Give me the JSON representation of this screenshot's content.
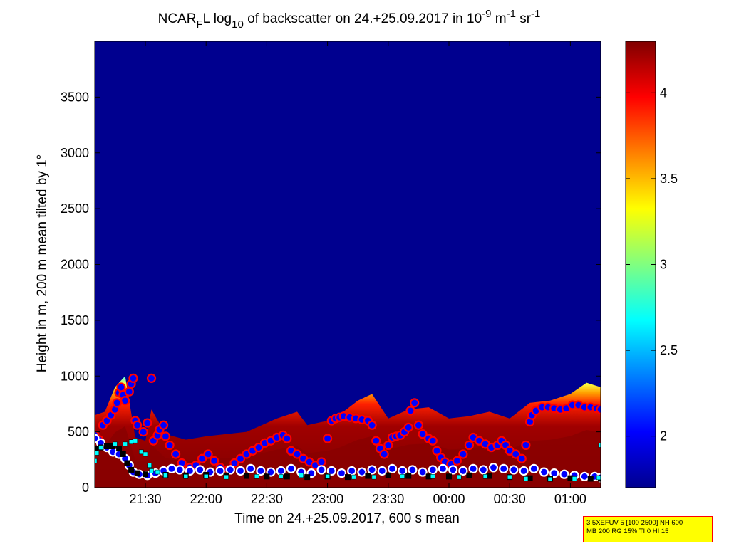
{
  "chart_data": {
    "type": "heatmap",
    "title_parts": {
      "a": "NCAR",
      "a_sub": "F",
      "b": "L log",
      "b_sub": "10",
      "c": " of backscatter on 24.+25.09.2017 in 10",
      "c_sup": "-9",
      "d": " m",
      "d_sup": "-1",
      "e": " sr",
      "e_sup": "-1"
    },
    "xlabel": "Time on 24.+25.09.2017, 600 s mean",
    "ylabel": "Height in m, 200 m mean tilted by 1°",
    "x_ticks": [
      "21:30",
      "22:00",
      "22:30",
      "23:00",
      "23:30",
      "00:00",
      "00:30",
      "01:00"
    ],
    "x_tick_minutes": [
      1290,
      1320,
      1350,
      1380,
      1410,
      1440,
      1470,
      1500
    ],
    "xlim_minutes": [
      1265,
      1515
    ],
    "y_ticks": [
      "0",
      "500",
      "1000",
      "1500",
      "2000",
      "2500",
      "3000",
      "3500"
    ],
    "y_tick_values": [
      0,
      500,
      1000,
      1500,
      2000,
      2500,
      3000,
      3500
    ],
    "ylim": [
      0,
      4000
    ],
    "colorbar": {
      "ticks": [
        "2",
        "2.5",
        "3",
        "3.5",
        "4"
      ],
      "tick_values": [
        2,
        2.5,
        3,
        3.5,
        4
      ],
      "range": [
        1.7,
        4.3
      ],
      "colormap": "jet"
    },
    "background_value": 1.7,
    "backscatter_layer_top": [
      {
        "t": 1265,
        "h": 650
      },
      {
        "t": 1270,
        "h": 680
      },
      {
        "t": 1275,
        "h": 900
      },
      {
        "t": 1280,
        "h": 1000
      },
      {
        "t": 1285,
        "h": 450
      },
      {
        "t": 1290,
        "h": 420
      },
      {
        "t": 1293,
        "h": 700
      },
      {
        "t": 1300,
        "h": 480
      },
      {
        "t": 1310,
        "h": 430
      },
      {
        "t": 1320,
        "h": 460
      },
      {
        "t": 1330,
        "h": 480
      },
      {
        "t": 1340,
        "h": 500
      },
      {
        "t": 1350,
        "h": 580
      },
      {
        "t": 1355,
        "h": 620
      },
      {
        "t": 1365,
        "h": 680
      },
      {
        "t": 1370,
        "h": 560
      },
      {
        "t": 1380,
        "h": 600
      },
      {
        "t": 1385,
        "h": 640
      },
      {
        "t": 1395,
        "h": 780
      },
      {
        "t": 1402,
        "h": 840
      },
      {
        "t": 1410,
        "h": 620
      },
      {
        "t": 1420,
        "h": 700
      },
      {
        "t": 1430,
        "h": 720
      },
      {
        "t": 1440,
        "h": 620
      },
      {
        "t": 1450,
        "h": 640
      },
      {
        "t": 1460,
        "h": 680
      },
      {
        "t": 1470,
        "h": 620
      },
      {
        "t": 1480,
        "h": 760
      },
      {
        "t": 1490,
        "h": 780
      },
      {
        "t": 1500,
        "h": 840
      },
      {
        "t": 1508,
        "h": 940
      },
      {
        "t": 1515,
        "h": 900
      }
    ],
    "series": [
      {
        "name": "cloud_layer_top",
        "color": "#0000ff",
        "edge": "#ff0000",
        "points": [
          [
            1265,
            470
          ],
          [
            1267,
            430
          ],
          [
            1269,
            560
          ],
          [
            1271,
            600
          ],
          [
            1273,
            650
          ],
          [
            1275,
            700
          ],
          [
            1276,
            760
          ],
          [
            1277,
            850
          ],
          [
            1278,
            900
          ],
          [
            1279,
            830
          ],
          [
            1280,
            780
          ],
          [
            1282,
            860
          ],
          [
            1283,
            930
          ],
          [
            1284,
            980
          ],
          [
            1285,
            600
          ],
          [
            1286,
            560
          ],
          [
            1289,
            500
          ],
          [
            1291,
            580
          ],
          [
            1293,
            980
          ],
          [
            1294,
            420
          ],
          [
            1296,
            470
          ],
          [
            1297,
            520
          ],
          [
            1299,
            560
          ],
          [
            1300,
            460
          ],
          [
            1302,
            380
          ],
          [
            1305,
            300
          ],
          [
            1308,
            220
          ],
          [
            1312,
            180
          ],
          [
            1315,
            200
          ],
          [
            1318,
            260
          ],
          [
            1321,
            300
          ],
          [
            1324,
            240
          ],
          [
            1327,
            180
          ],
          [
            1331,
            160
          ],
          [
            1334,
            220
          ],
          [
            1337,
            260
          ],
          [
            1340,
            300
          ],
          [
            1343,
            330
          ],
          [
            1346,
            360
          ],
          [
            1349,
            400
          ],
          [
            1352,
            420
          ],
          [
            1355,
            450
          ],
          [
            1358,
            470
          ],
          [
            1360,
            440
          ],
          [
            1362,
            330
          ],
          [
            1365,
            300
          ],
          [
            1368,
            260
          ],
          [
            1371,
            230
          ],
          [
            1374,
            200
          ],
          [
            1377,
            230
          ],
          [
            1380,
            440
          ],
          [
            1382,
            600
          ],
          [
            1384,
            620
          ],
          [
            1386,
            630
          ],
          [
            1388,
            640
          ],
          [
            1391,
            630
          ],
          [
            1394,
            620
          ],
          [
            1397,
            610
          ],
          [
            1400,
            600
          ],
          [
            1402,
            560
          ],
          [
            1404,
            420
          ],
          [
            1406,
            350
          ],
          [
            1408,
            300
          ],
          [
            1410,
            380
          ],
          [
            1412,
            450
          ],
          [
            1414,
            460
          ],
          [
            1416,
            470
          ],
          [
            1418,
            500
          ],
          [
            1420,
            540
          ],
          [
            1421,
            690
          ],
          [
            1423,
            760
          ],
          [
            1425,
            560
          ],
          [
            1427,
            480
          ],
          [
            1430,
            440
          ],
          [
            1432,
            420
          ],
          [
            1434,
            330
          ],
          [
            1436,
            270
          ],
          [
            1438,
            230
          ],
          [
            1441,
            210
          ],
          [
            1444,
            240
          ],
          [
            1447,
            300
          ],
          [
            1450,
            380
          ],
          [
            1452,
            450
          ],
          [
            1455,
            420
          ],
          [
            1458,
            390
          ],
          [
            1461,
            360
          ],
          [
            1464,
            380
          ],
          [
            1466,
            420
          ],
          [
            1468,
            380
          ],
          [
            1470,
            330
          ],
          [
            1473,
            300
          ],
          [
            1476,
            260
          ],
          [
            1478,
            380
          ],
          [
            1480,
            590
          ],
          [
            1481,
            650
          ],
          [
            1483,
            690
          ],
          [
            1486,
            720
          ],
          [
            1489,
            720
          ],
          [
            1492,
            710
          ],
          [
            1495,
            700
          ],
          [
            1498,
            710
          ],
          [
            1501,
            740
          ],
          [
            1504,
            740
          ],
          [
            1507,
            720
          ],
          [
            1510,
            720
          ],
          [
            1513,
            710
          ],
          [
            1515,
            700
          ]
        ]
      },
      {
        "name": "aerosol_layer_low",
        "color": "#0000ff",
        "edge": "#ffffff",
        "points": [
          [
            1265,
            440
          ],
          [
            1268,
            400
          ],
          [
            1271,
            360
          ],
          [
            1274,
            320
          ],
          [
            1277,
            300
          ],
          [
            1280,
            260
          ],
          [
            1282,
            200
          ],
          [
            1284,
            140
          ],
          [
            1287,
            120
          ],
          [
            1291,
            110
          ],
          [
            1295,
            130
          ],
          [
            1299,
            150
          ],
          [
            1303,
            170
          ],
          [
            1307,
            160
          ],
          [
            1312,
            150
          ],
          [
            1317,
            160
          ],
          [
            1322,
            140
          ],
          [
            1327,
            150
          ],
          [
            1332,
            160
          ],
          [
            1337,
            150
          ],
          [
            1342,
            170
          ],
          [
            1347,
            150
          ],
          [
            1352,
            140
          ],
          [
            1357,
            150
          ],
          [
            1362,
            170
          ],
          [
            1367,
            140
          ],
          [
            1372,
            130
          ],
          [
            1377,
            160
          ],
          [
            1382,
            150
          ],
          [
            1387,
            130
          ],
          [
            1392,
            150
          ],
          [
            1397,
            140
          ],
          [
            1402,
            160
          ],
          [
            1407,
            150
          ],
          [
            1412,
            170
          ],
          [
            1417,
            150
          ],
          [
            1422,
            160
          ],
          [
            1427,
            140
          ],
          [
            1432,
            160
          ],
          [
            1437,
            170
          ],
          [
            1442,
            160
          ],
          [
            1447,
            150
          ],
          [
            1452,
            170
          ],
          [
            1457,
            160
          ],
          [
            1462,
            180
          ],
          [
            1467,
            170
          ],
          [
            1472,
            160
          ],
          [
            1477,
            150
          ],
          [
            1482,
            170
          ],
          [
            1487,
            140
          ],
          [
            1492,
            130
          ],
          [
            1497,
            120
          ],
          [
            1502,
            110
          ],
          [
            1507,
            100
          ],
          [
            1512,
            100
          ],
          [
            1515,
            90
          ]
        ]
      },
      {
        "name": "boundary_layer_height",
        "color": "#000000",
        "points": [
          [
            1265,
            350
          ],
          [
            1268,
            360
          ],
          [
            1271,
            370
          ],
          [
            1274,
            370
          ],
          [
            1277,
            350
          ],
          [
            1279,
            300
          ],
          [
            1281,
            220
          ],
          [
            1283,
            160
          ],
          [
            1286,
            130
          ],
          [
            1290,
            120
          ],
          [
            1300,
            115
          ],
          [
            1310,
            110
          ],
          [
            1320,
            115
          ],
          [
            1330,
            110
          ],
          [
            1340,
            105
          ],
          [
            1350,
            100
          ],
          [
            1360,
            100
          ],
          [
            1370,
            95
          ],
          [
            1380,
            100
          ],
          [
            1390,
            95
          ],
          [
            1400,
            105
          ],
          [
            1410,
            110
          ],
          [
            1420,
            105
          ],
          [
            1430,
            100
          ],
          [
            1440,
            100
          ],
          [
            1450,
            110
          ],
          [
            1460,
            105
          ],
          [
            1470,
            95
          ],
          [
            1480,
            85
          ],
          [
            1490,
            80
          ],
          [
            1500,
            85
          ],
          [
            1510,
            80
          ],
          [
            1515,
            80
          ]
        ]
      },
      {
        "name": "cyan_markers",
        "color": "#00ffff",
        "points": [
          [
            1265,
            240
          ],
          [
            1266,
            310
          ],
          [
            1268,
            360
          ],
          [
            1275,
            390
          ],
          [
            1280,
            390
          ],
          [
            1283,
            410
          ],
          [
            1285,
            420
          ],
          [
            1288,
            320
          ],
          [
            1290,
            300
          ],
          [
            1292,
            200
          ],
          [
            1293,
            150
          ],
          [
            1296,
            140
          ],
          [
            1300,
            110
          ],
          [
            1310,
            100
          ],
          [
            1320,
            100
          ],
          [
            1330,
            95
          ],
          [
            1345,
            100
          ],
          [
            1357,
            100
          ],
          [
            1367,
            110
          ],
          [
            1380,
            100
          ],
          [
            1393,
            95
          ],
          [
            1403,
            95
          ],
          [
            1417,
            100
          ],
          [
            1432,
            100
          ],
          [
            1445,
            95
          ],
          [
            1458,
            100
          ],
          [
            1470,
            95
          ],
          [
            1478,
            80
          ],
          [
            1490,
            75
          ],
          [
            1502,
            80
          ],
          [
            1514,
            90
          ],
          [
            1515,
            380
          ]
        ]
      }
    ]
  },
  "info_box": {
    "line1": "3.5XEFUV 5 [100 2500] NH 600",
    "line2": "MB 200 RG 15% TI 0 HI 15"
  }
}
